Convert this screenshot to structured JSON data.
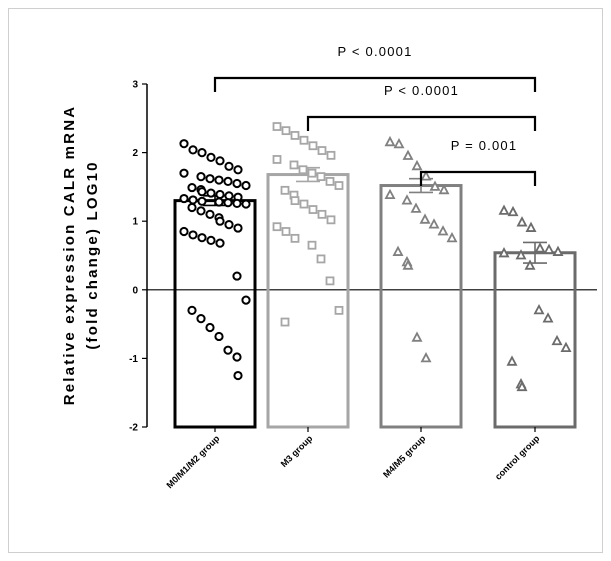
{
  "chart_data": {
    "type": "bar",
    "ylabel_line1": "Relative expression  CALR mRNA",
    "ylabel_line2": "(fold change) LOG10",
    "ylim": [
      -2,
      3
    ],
    "yticks": [
      "-2",
      "-1",
      "0",
      "1",
      "2",
      "3"
    ],
    "categories": [
      "M0/M1/M2 group",
      "M3 group",
      "M4/M5 group",
      "control group"
    ],
    "series": [
      {
        "values": [
          1.3,
          1.68,
          1.52,
          0.54
        ],
        "error": [
          0.07,
          0.1,
          0.1,
          0.15
        ],
        "points": [
          [
            2.13,
            2.04,
            2.0,
            1.93,
            1.88,
            1.8,
            1.75,
            1.7,
            1.65,
            1.62,
            1.6,
            1.58,
            1.55,
            1.52,
            1.49,
            1.46,
            1.43,
            1.41,
            1.39,
            1.37,
            1.35,
            1.33,
            1.31,
            1.29,
            1.28,
            1.27,
            1.26,
            1.25,
            1.2,
            1.15,
            1.1,
            1.05,
            1.0,
            0.95,
            0.9,
            0.85,
            0.8,
            0.76,
            0.72,
            0.68,
            0.2,
            -0.15,
            -0.3,
            -0.42,
            -0.55,
            -0.68,
            -0.88,
            -0.98,
            -1.25
          ],
          [
            2.38,
            2.32,
            2.25,
            2.18,
            2.1,
            2.03,
            1.96,
            1.9,
            1.82,
            1.75,
            1.7,
            1.65,
            1.58,
            1.52,
            1.45,
            1.38,
            1.3,
            1.25,
            1.17,
            1.1,
            1.02,
            0.92,
            0.85,
            0.75,
            0.65,
            0.45,
            0.13,
            -0.3,
            -0.47
          ],
          [
            2.15,
            2.12,
            1.95,
            1.8,
            1.65,
            1.5,
            1.45,
            1.38,
            1.3,
            1.18,
            1.02,
            0.95,
            0.85,
            0.75,
            0.55,
            0.4,
            0.35,
            -0.7,
            -1.0
          ],
          [
            1.15,
            1.13,
            0.98,
            0.9,
            0.6,
            0.58,
            0.55,
            0.53,
            0.5,
            0.35,
            -0.3,
            -0.42,
            -0.75,
            -0.85,
            -1.05,
            -1.38,
            -1.42
          ]
        ]
      }
    ],
    "styles": [
      {
        "stroke": "#000000",
        "marker": "circle"
      },
      {
        "stroke": "#a6a6a6",
        "marker": "square"
      },
      {
        "stroke": "#808080",
        "marker": "triangle"
      },
      {
        "stroke": "#6b6b6b",
        "marker": "triangle"
      }
    ],
    "annotations": [
      {
        "label": "P < 0.0001",
        "from": 0,
        "to": 3
      },
      {
        "label": "P < 0.0001",
        "from": 1,
        "to": 3
      },
      {
        "label": "P = 0.001",
        "from": 2,
        "to": 3
      }
    ],
    "grid": false,
    "zero_line": true
  }
}
